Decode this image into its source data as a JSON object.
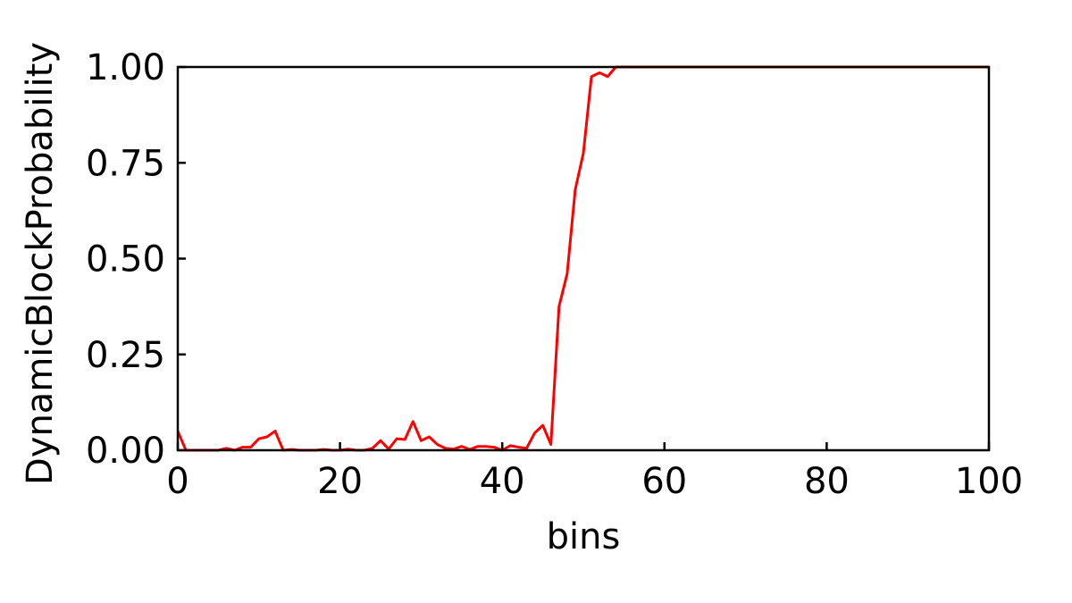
{
  "chart_data": {
    "type": "line",
    "title": "",
    "xlabel": "bins",
    "ylabel": "DynamicBlockProbability",
    "xlim": [
      0,
      100
    ],
    "ylim": [
      0,
      1
    ],
    "xticks": [
      0,
      20,
      40,
      60,
      80,
      100
    ],
    "yticks": [
      0,
      0.25,
      0.5,
      0.75,
      1.0
    ],
    "xtick_labels": [
      "0",
      "20",
      "40",
      "60",
      "80",
      "100"
    ],
    "ytick_labels": [
      "0.00",
      "0.25",
      "0.50",
      "0.75",
      "1.00"
    ],
    "grid": false,
    "line_color": "#ff0000",
    "axis_color": "#000000",
    "series": [
      {
        "name": "DynamicBlockProbability",
        "x": [
          0,
          1,
          2,
          3,
          4,
          5,
          6,
          7,
          8,
          9,
          10,
          11,
          12,
          13,
          14,
          15,
          16,
          17,
          18,
          19,
          20,
          21,
          22,
          23,
          24,
          25,
          26,
          27,
          28,
          29,
          30,
          31,
          32,
          33,
          34,
          35,
          36,
          37,
          38,
          39,
          40,
          41,
          42,
          43,
          44,
          45,
          46,
          47,
          48,
          49,
          50,
          51,
          52,
          53,
          54,
          55,
          60,
          70,
          80,
          90,
          100
        ],
        "values": [
          0.05,
          0.0,
          0.0,
          0.0,
          0.0,
          0.0,
          0.005,
          0.0,
          0.008,
          0.008,
          0.03,
          0.035,
          0.05,
          0.0,
          0.002,
          0.0,
          0.0,
          0.0,
          0.002,
          0.0,
          0.0,
          0.003,
          0.0,
          0.0,
          0.005,
          0.025,
          0.003,
          0.03,
          0.028,
          0.075,
          0.025,
          0.035,
          0.015,
          0.005,
          0.003,
          0.01,
          0.002,
          0.01,
          0.01,
          0.008,
          0.0,
          0.012,
          0.008,
          0.005,
          0.045,
          0.065,
          0.015,
          0.375,
          0.46,
          0.68,
          0.775,
          0.975,
          0.985,
          0.975,
          1.0,
          1.0,
          1.0,
          1.0,
          1.0,
          1.0,
          1.0
        ]
      }
    ]
  }
}
